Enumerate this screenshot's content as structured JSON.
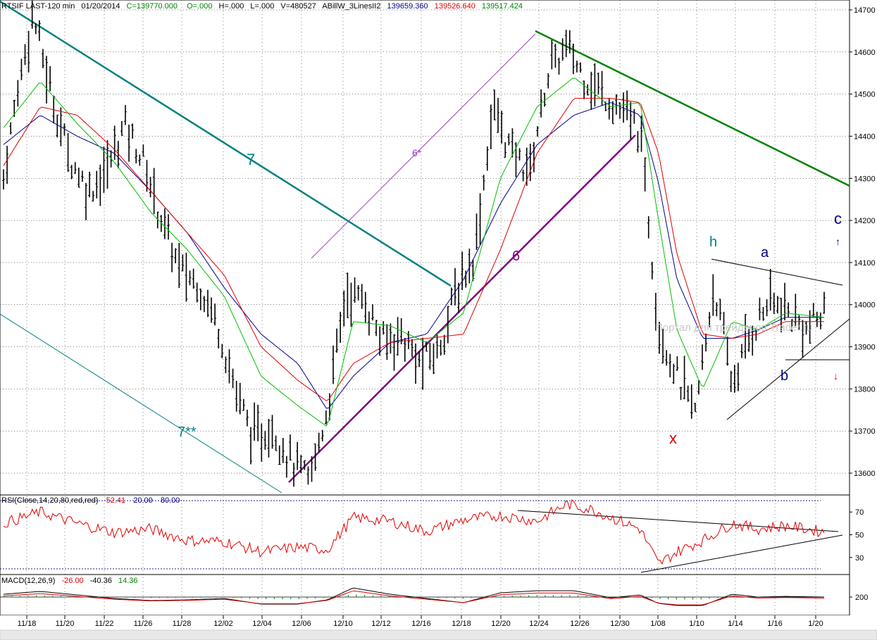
{
  "header": {
    "symbol": "RTSIF LAST-120 min",
    "date": "01/20/2014",
    "close": "C=139770.000",
    "open": "O=.000",
    "high": "H=.000",
    "low": "L=.000",
    "volume": "V=480527",
    "study": "ABillW_3LinesII2",
    "line1": "139659.360",
    "line2": "139526.640",
    "line3": "139517.424"
  },
  "colors": {
    "price_bar": "#000000",
    "ma_fast": "#00c000",
    "ma_mid": "#e00000",
    "ma_slow": "#00008b",
    "line7": "#008080",
    "line6": "#800080",
    "line_upper": "#008000",
    "rsi": "#e00000",
    "guide": "#000080"
  },
  "watermark": "Портал для трейдеров Trader.ru",
  "annotations": {
    "seven": "7",
    "seven_star": "7**",
    "six": "6",
    "six_star": "6*",
    "h": "h",
    "a": "a",
    "b": "b",
    "c": "c",
    "x": "x",
    "arrow_up": "↑",
    "arrow_down": "↓"
  },
  "chart_data": [
    {
      "type": "ohlc",
      "title": "RTSIF LAST-120 min",
      "x_ticks": [
        "11/18",
        "11/20",
        "11/22",
        "11/26",
        "11/28",
        "12/02",
        "12/04",
        "12/06",
        "12/10",
        "12/12",
        "12/16",
        "12/18",
        "12/20",
        "12/24",
        "12/26",
        "12/30",
        "1/08",
        "1/10",
        "1/14",
        "1/16",
        "1/20"
      ],
      "y_ticks": [
        147000,
        146000,
        145000,
        144000,
        143000,
        142000,
        141000,
        140000,
        139000,
        138000,
        137000,
        136000
      ],
      "y_tick_labels": [
        "14700",
        "14600",
        "14500",
        "14400",
        "14300",
        "14200",
        "14100",
        "14000",
        "13900",
        "13800",
        "13700",
        "13600"
      ],
      "ylim": [
        135500,
        147300
      ],
      "path_approx": [
        [
          0,
          143000
        ],
        [
          0.8,
          145200
        ],
        [
          1.6,
          146900
        ],
        [
          2.6,
          145000
        ],
        [
          3.6,
          143500
        ],
        [
          4.6,
          142700
        ],
        [
          5.6,
          143200
        ],
        [
          6.6,
          144300
        ],
        [
          7.6,
          143400
        ],
        [
          8.6,
          142000
        ],
        [
          9.6,
          140800
        ],
        [
          10.6,
          140500
        ],
        [
          11.6,
          139600
        ],
        [
          12.6,
          138000
        ],
        [
          13.6,
          136800
        ],
        [
          14.6,
          137100
        ],
        [
          15.6,
          136300
        ],
        [
          16.6,
          135800
        ],
        [
          17.6,
          137500
        ],
        [
          18.6,
          140300
        ],
        [
          19.6,
          140100
        ],
        [
          20.6,
          139100
        ],
        [
          21.6,
          139300
        ],
        [
          22.6,
          138600
        ],
        [
          23.6,
          138900
        ],
        [
          24.6,
          140300
        ],
        [
          25.6,
          141200
        ],
        [
          26.6,
          144700
        ],
        [
          27.6,
          143600
        ],
        [
          28.6,
          143200
        ],
        [
          29.6,
          145500
        ],
        [
          30.6,
          146100
        ],
        [
          31.6,
          145400
        ],
        [
          32.6,
          145000
        ],
        [
          33.6,
          144600
        ],
        [
          34.6,
          144100
        ],
        [
          35.6,
          139500
        ],
        [
          36.6,
          138300
        ],
        [
          37.6,
          137400
        ],
        [
          38.6,
          140500
        ],
        [
          39.6,
          138100
        ],
        [
          40.6,
          139300
        ],
        [
          41.6,
          140100
        ],
        [
          42.6,
          139800
        ],
        [
          43.6,
          139400
        ],
        [
          44.6,
          139770
        ]
      ],
      "ma_fast_approx": [
        [
          0,
          144200
        ],
        [
          2,
          145300
        ],
        [
          4,
          144300
        ],
        [
          6,
          143400
        ],
        [
          8,
          142200
        ],
        [
          10,
          141300
        ],
        [
          12,
          140200
        ],
        [
          14,
          138300
        ],
        [
          16,
          137600
        ],
        [
          17.6,
          137100
        ],
        [
          19,
          139600
        ],
        [
          21,
          139500
        ],
        [
          23,
          139100
        ],
        [
          25,
          139800
        ],
        [
          27,
          143000
        ],
        [
          29,
          144700
        ],
        [
          31,
          145400
        ],
        [
          33,
          144700
        ],
        [
          34.6,
          144800
        ],
        [
          35.6,
          142000
        ],
        [
          36.6,
          139400
        ],
        [
          38,
          138000
        ],
        [
          39.6,
          139600
        ],
        [
          41,
          139400
        ],
        [
          42.5,
          139800
        ],
        [
          44.6,
          139700
        ]
      ],
      "ma_mid_approx": [
        [
          0,
          143300
        ],
        [
          2,
          144700
        ],
        [
          4,
          144500
        ],
        [
          6,
          143700
        ],
        [
          8,
          142700
        ],
        [
          10,
          141700
        ],
        [
          12,
          140700
        ],
        [
          14,
          139000
        ],
        [
          16,
          138200
        ],
        [
          17.6,
          137700
        ],
        [
          19,
          138600
        ],
        [
          21,
          139100
        ],
        [
          23,
          139200
        ],
        [
          25,
          139300
        ],
        [
          27,
          141300
        ],
        [
          29,
          143600
        ],
        [
          31,
          144900
        ],
        [
          33,
          144900
        ],
        [
          34.6,
          144800
        ],
        [
          35.6,
          143600
        ],
        [
          36.6,
          141200
        ],
        [
          38,
          139300
        ],
        [
          39.6,
          139200
        ],
        [
          41,
          139300
        ],
        [
          42.5,
          139600
        ],
        [
          44.6,
          139600
        ]
      ],
      "ma_slow_approx": [
        [
          0,
          143800
        ],
        [
          2,
          144500
        ],
        [
          4,
          144000
        ],
        [
          6,
          143600
        ],
        [
          8,
          142700
        ],
        [
          10,
          141700
        ],
        [
          12,
          140400
        ],
        [
          14,
          139300
        ],
        [
          16,
          138600
        ],
        [
          17.6,
          137500
        ],
        [
          19,
          138300
        ],
        [
          21,
          139100
        ],
        [
          23,
          139300
        ],
        [
          25,
          140600
        ],
        [
          27,
          142400
        ],
        [
          29,
          143800
        ],
        [
          31,
          144500
        ],
        [
          33,
          144800
        ],
        [
          34.6,
          144500
        ],
        [
          35.6,
          142900
        ],
        [
          36.6,
          140600
        ],
        [
          38,
          139200
        ],
        [
          39.6,
          139200
        ],
        [
          41,
          139400
        ],
        [
          42.5,
          139700
        ],
        [
          44.6,
          139700
        ]
      ]
    },
    {
      "type": "line",
      "title": "RSI(Close,14,20,80,red,red)",
      "values_text": [
        "52.41",
        "20.00",
        "80.00"
      ],
      "y_ticks": [
        70,
        50,
        30
      ],
      "ylim": [
        15,
        85
      ],
      "levels": [
        20,
        80
      ],
      "path_approx": [
        [
          0,
          60
        ],
        [
          2,
          70
        ],
        [
          4,
          60
        ],
        [
          6,
          52
        ],
        [
          8,
          55
        ],
        [
          10,
          45
        ],
        [
          12,
          44
        ],
        [
          14,
          35
        ],
        [
          16,
          39
        ],
        [
          17.6,
          37
        ],
        [
          19,
          65
        ],
        [
          21,
          62
        ],
        [
          23,
          53
        ],
        [
          25,
          63
        ],
        [
          27,
          67
        ],
        [
          29,
          62
        ],
        [
          30.6,
          77
        ],
        [
          32,
          72
        ],
        [
          34.6,
          55
        ],
        [
          35.6,
          24
        ],
        [
          36.6,
          35
        ],
        [
          38,
          45
        ],
        [
          39.6,
          60
        ],
        [
          41,
          55
        ],
        [
          42.5,
          58
        ],
        [
          44.6,
          52.41
        ]
      ]
    },
    {
      "type": "line",
      "title": "MACD(12,26,9)",
      "values_text": [
        "-26.00",
        "-40.36",
        "14.36"
      ],
      "y_ticks": [
        200
      ],
      "y_tick_labels": [
        "200"
      ],
      "note": "MACD and signal oscillating around the zero line; histogram shown as vertical bars."
    }
  ]
}
